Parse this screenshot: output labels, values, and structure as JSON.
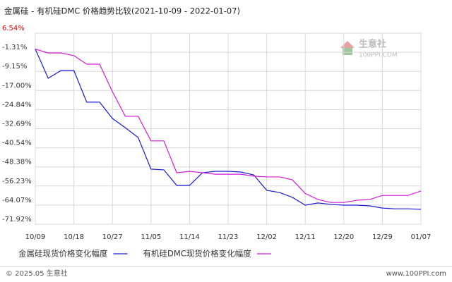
{
  "chart_data": {
    "type": "line",
    "title": "金属硅 - 有机硅DMC 价格趋势比较(2021-10-09 - 2022-01-07)",
    "categories": [
      "10/09",
      null,
      null,
      "10/18",
      null,
      null,
      "10/27",
      null,
      null,
      "11/05",
      null,
      null,
      "11/14",
      null,
      null,
      "11/23",
      null,
      null,
      "12/02",
      null,
      null,
      "12/11",
      null,
      null,
      "12/20",
      null,
      null,
      "12/29",
      null,
      null,
      "01/07"
    ],
    "series": [
      {
        "name": "金属硅现货价格变化幅度",
        "color": "#1a1ad6",
        "values": [
          0,
          -12,
          -8.8,
          -8.8,
          -21.8,
          -21.8,
          -28.5,
          -32.3,
          -36.3,
          -49.3,
          -49.6,
          -56,
          -56,
          -50.8,
          -50.2,
          -50.2,
          -50.5,
          -51.7,
          -58,
          -58.9,
          -60.9,
          -64.1,
          -63.2,
          -63.8,
          -64.1,
          -64.1,
          -64.4,
          -65.3,
          -65.6,
          -65.6,
          -65.8
        ]
      },
      {
        "name": "有机硅DMC现货价格变化幅度",
        "color": "#d21ad6",
        "values": [
          0,
          -1.6,
          -1.6,
          -2.7,
          -6.2,
          -6.2,
          -17.5,
          -27.6,
          -27.6,
          -37.7,
          -37.7,
          -50.8,
          -50.2,
          -50.8,
          -51.4,
          -51.4,
          -51.4,
          -52.2,
          -52.5,
          -52.5,
          -53.7,
          -59.3,
          -61.8,
          -63,
          -63,
          -62.1,
          -61.8,
          -60.1,
          -60.1,
          -60.1,
          -58.3
        ]
      }
    ],
    "ylim": [
      -71.92,
      6.54
    ],
    "yticks": [
      {
        "value": 6.54,
        "label": "6.54%"
      },
      {
        "value": -1.31,
        "label": "-1.31%"
      },
      {
        "value": -9.15,
        "label": "-9.15%"
      },
      {
        "value": -17.0,
        "label": "-17.00%"
      },
      {
        "value": -24.84,
        "label": "-24.84%"
      },
      {
        "value": -32.69,
        "label": "-32.69%"
      },
      {
        "value": -40.54,
        "label": "-40.54%"
      },
      {
        "value": -48.38,
        "label": "-48.38%"
      },
      {
        "value": -56.23,
        "label": "-56.23%"
      },
      {
        "value": -64.07,
        "label": "-64.07%"
      },
      {
        "value": -71.92,
        "label": "-71.92%"
      }
    ],
    "grid": true,
    "watermark": {
      "name": "生意社",
      "site": "100PPI.COM"
    },
    "footer": {
      "left": "© 2025.05 生意社",
      "right": "www.100PPI.com"
    }
  }
}
